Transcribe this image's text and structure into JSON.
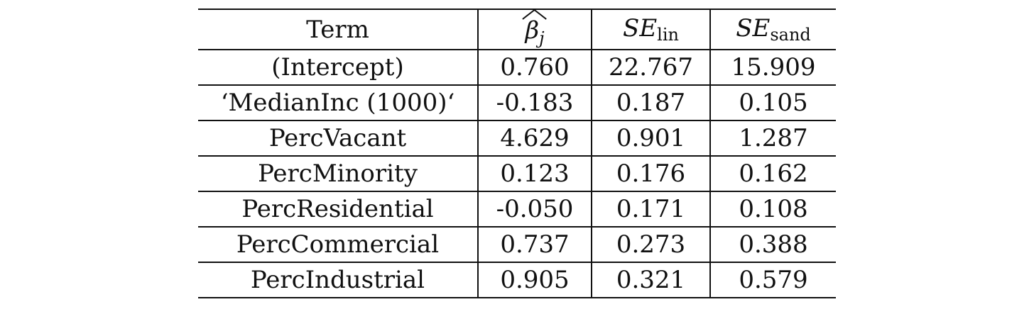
{
  "table": {
    "headers": {
      "term": "Term",
      "beta": "β",
      "beta_sub": "j",
      "se_lin": "SE",
      "se_lin_sub": "lin",
      "se_sand": "SE",
      "se_sand_sub": "sand"
    },
    "rows": [
      {
        "term": "(Intercept)",
        "beta": "0.760",
        "se_lin": "22.767",
        "se_sand": "15.909"
      },
      {
        "term": "‘MedianInc (1000)‘",
        "beta": "-0.183",
        "se_lin": "0.187",
        "se_sand": "0.105"
      },
      {
        "term": "PercVacant",
        "beta": "4.629",
        "se_lin": "0.901",
        "se_sand": "1.287"
      },
      {
        "term": "PercMinority",
        "beta": "0.123",
        "se_lin": "0.176",
        "se_sand": "0.162"
      },
      {
        "term": "PercResidential",
        "beta": "-0.050",
        "se_lin": "0.171",
        "se_sand": "0.108"
      },
      {
        "term": "PercCommercial",
        "beta": "0.737",
        "se_lin": "0.273",
        "se_sand": "0.388"
      },
      {
        "term": "PercIndustrial",
        "beta": "0.905",
        "se_lin": "0.321",
        "se_sand": "0.579"
      }
    ]
  }
}
